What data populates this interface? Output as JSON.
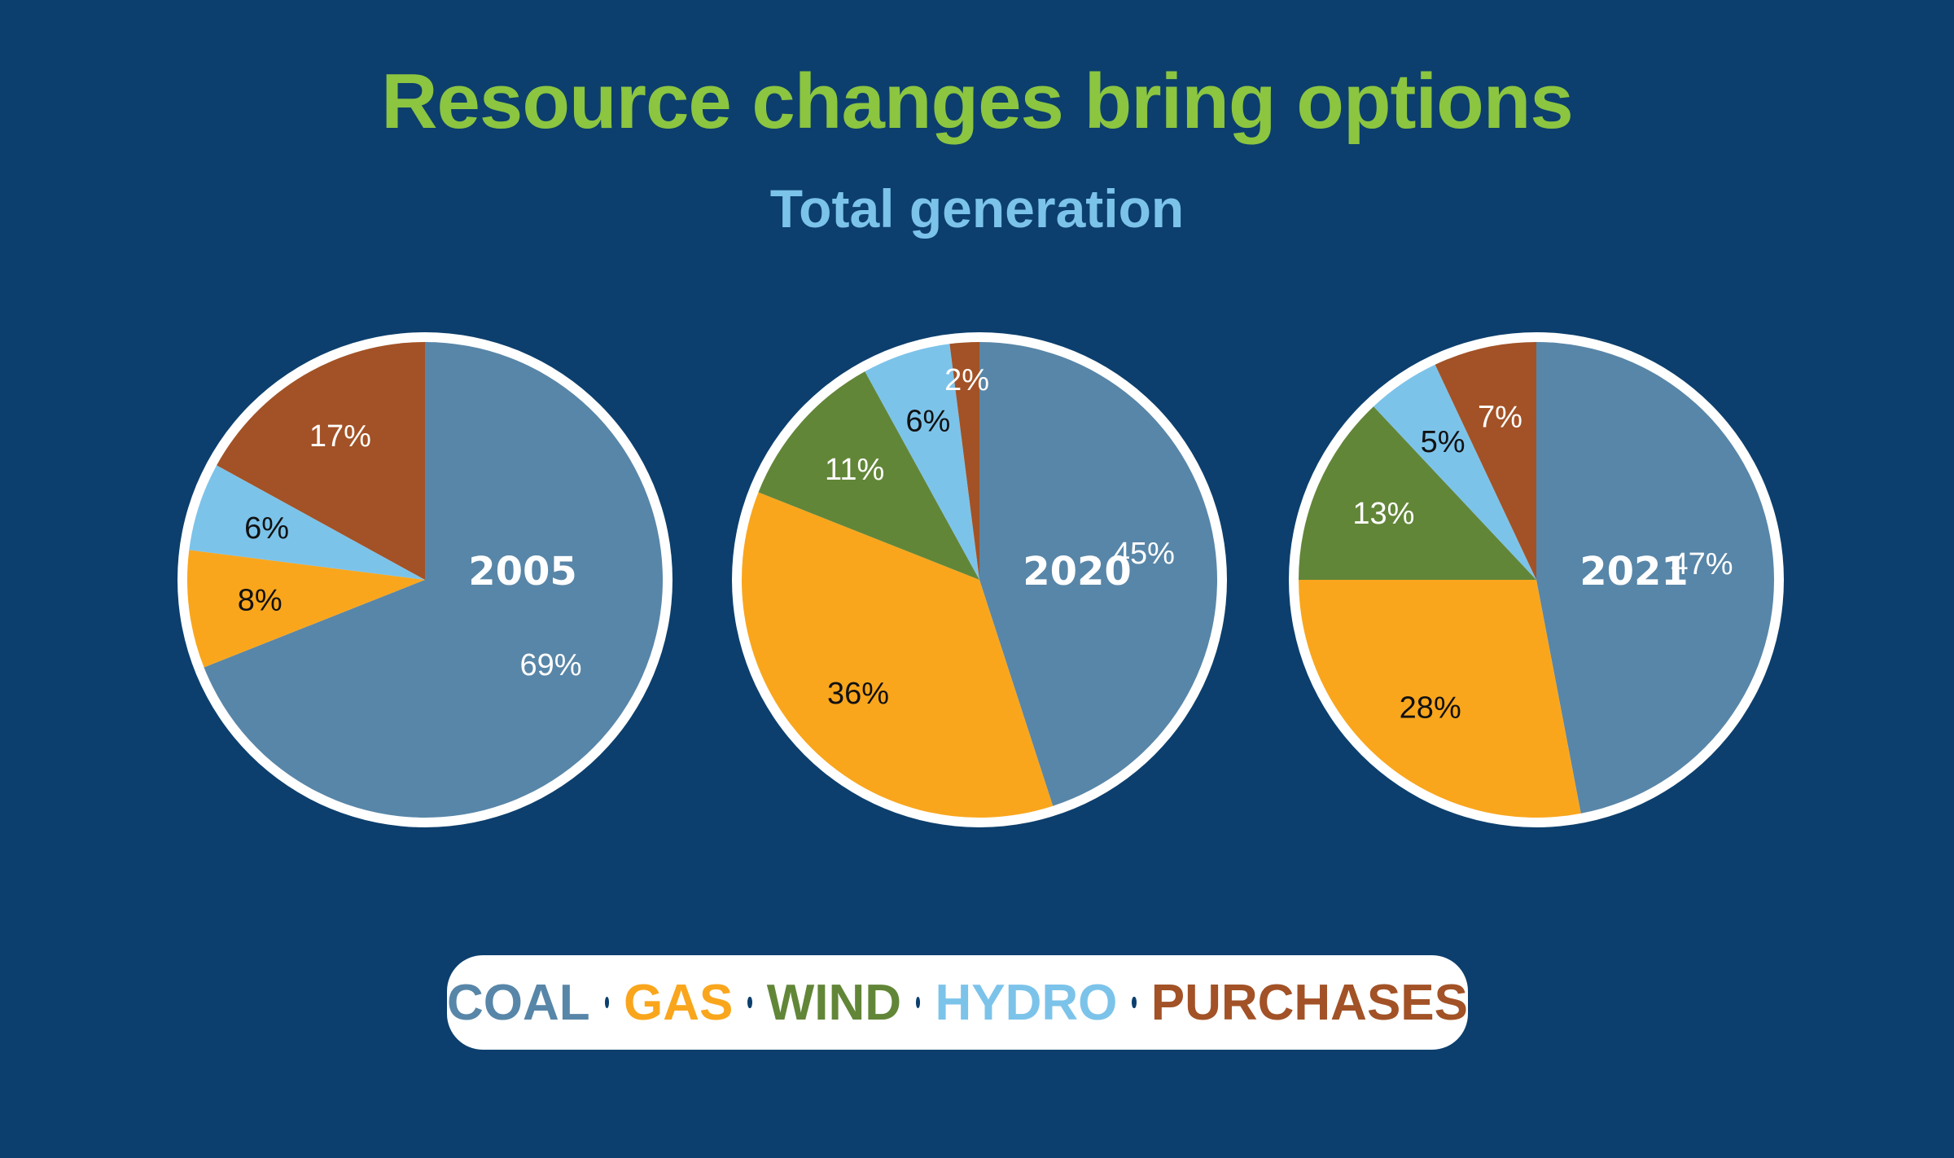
{
  "title": "Resource changes bring options",
  "subtitle": "Total generation",
  "colors": {
    "background": "#0c3f6d",
    "Coal": "#5886a8",
    "Gas": "#f9a61d",
    "Wind": "#628638",
    "Hydro": "#7cc3ea",
    "Purchases": "#a25226"
  },
  "legend": [
    {
      "label": "COAL",
      "color": "#5886a8"
    },
    {
      "label": "GAS",
      "color": "#f9a61d"
    },
    {
      "label": "WIND",
      "color": "#628638"
    },
    {
      "label": "HYDRO",
      "color": "#7cc3ea"
    },
    {
      "label": "PURCHASES",
      "color": "#a25226"
    }
  ],
  "chart_data": [
    {
      "type": "pie",
      "center_label": "2005",
      "slices": [
        {
          "category": "Coal",
          "value": 69,
          "label": "69%"
        },
        {
          "category": "Gas",
          "value": 8,
          "label": "8%"
        },
        {
          "category": "Hydro",
          "value": 6,
          "label": "6%"
        },
        {
          "category": "Purchases",
          "value": 17,
          "label": "17%"
        }
      ]
    },
    {
      "type": "pie",
      "center_label": "2020",
      "slices": [
        {
          "category": "Coal",
          "value": 45,
          "label": "45%"
        },
        {
          "category": "Gas",
          "value": 36,
          "label": "36%"
        },
        {
          "category": "Wind",
          "value": 11,
          "label": "11%"
        },
        {
          "category": "Hydro",
          "value": 6,
          "label": "6%"
        },
        {
          "category": "Purchases",
          "value": 2,
          "label": "2%"
        }
      ]
    },
    {
      "type": "pie",
      "center_label": "2021",
      "slices": [
        {
          "category": "Coal",
          "value": 47,
          "label": "47%"
        },
        {
          "category": "Gas",
          "value": 28,
          "label": "28%"
        },
        {
          "category": "Wind",
          "value": 13,
          "label": "13%"
        },
        {
          "category": "Hydro",
          "value": 5,
          "label": "5%"
        },
        {
          "category": "Purchases",
          "value": 7,
          "label": "7%"
        }
      ]
    }
  ]
}
